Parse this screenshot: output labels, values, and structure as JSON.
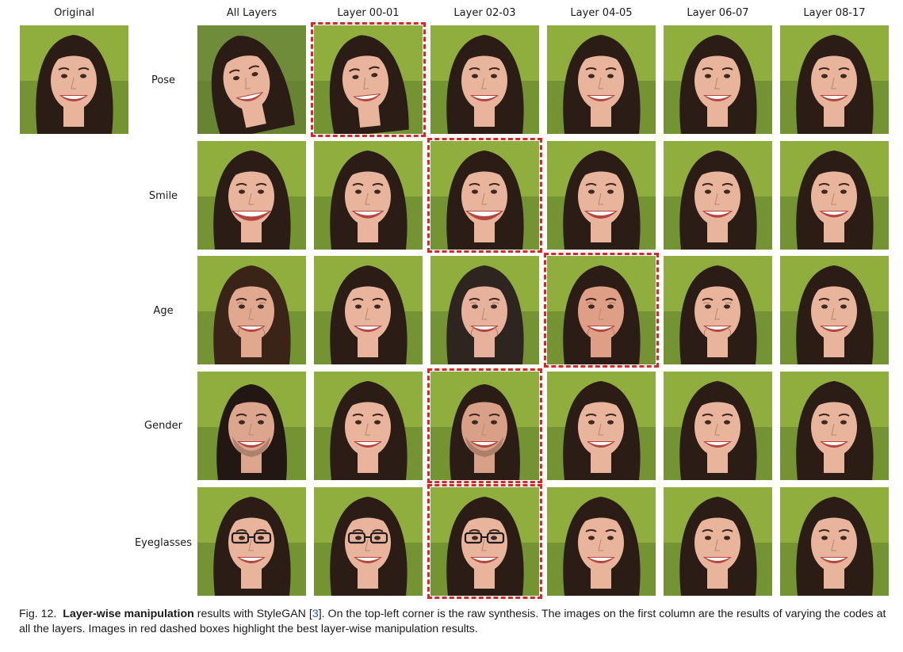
{
  "header": {
    "original": "Original",
    "columns": [
      "All Layers",
      "Layer 00-01",
      "Layer 02-03",
      "Layer 04-05",
      "Layer 06-07",
      "Layer 08-17"
    ]
  },
  "rows": [
    "Pose",
    "Smile",
    "Age",
    "Gender",
    "Eyeglasses"
  ],
  "highlights": [
    {
      "row": 0,
      "col": 1
    },
    {
      "row": 1,
      "col": 2
    },
    {
      "row": 2,
      "col": 3
    },
    {
      "row": 3,
      "col": 2
    },
    {
      "row": 4,
      "col": 2
    }
  ],
  "colors": {
    "highlight": "#e02424",
    "citation": "#2255cc"
  },
  "caption": {
    "fig": "Fig. 12.",
    "bold": "Layer-wise manipulation",
    "text1": "results with StyleGAN",
    "cite_open": "[",
    "ref": "3",
    "cite_close": "]",
    "text2": ". On the top-left corner is the raw synthesis. The images on the first column are the results of varying the codes at all the layers. Images in red dashed boxes highlight the best layer-wise manipulation results."
  }
}
